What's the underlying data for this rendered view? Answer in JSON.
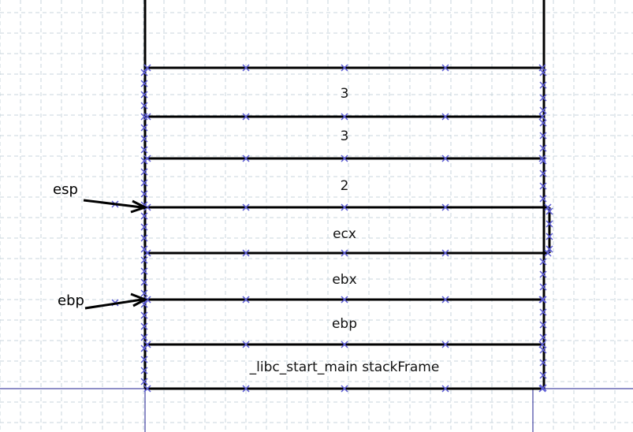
{
  "stack": {
    "cells": [
      "3",
      "3",
      "2",
      "ecx",
      "ebx",
      "ebp",
      "_libc_start_main stackFrame"
    ]
  },
  "pointers": [
    {
      "label": "esp",
      "at_boundary": 3
    },
    {
      "label": "ebp",
      "at_boundary": 5
    }
  ],
  "colors": {
    "grid": "#c9d6dc",
    "marker": "#5b5bd6",
    "guide": "#1d1d8f",
    "box": "#000000"
  }
}
